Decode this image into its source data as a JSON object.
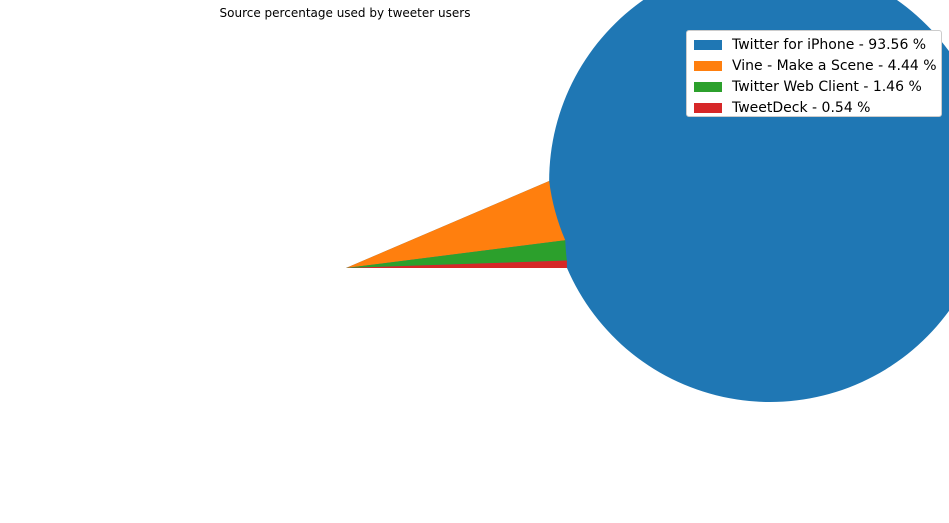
{
  "chart_data": {
    "type": "pie",
    "title": "Source percentage used by tweeter users",
    "slices": [
      {
        "label": "Twitter for iPhone - 93.56 %",
        "value": 93.56,
        "color": "#1f77b4"
      },
      {
        "label": "Vine - Make a Scene - 4.44 %",
        "value": 4.44,
        "color": "#ff7f0e"
      },
      {
        "label": "Twitter Web Client - 1.46 %",
        "value": 1.46,
        "color": "#2ca02c"
      },
      {
        "label": "TweetDeck - 0.54 %",
        "value": 0.54,
        "color": "#d62728"
      }
    ],
    "legend": {
      "placement": "top-right"
    }
  }
}
